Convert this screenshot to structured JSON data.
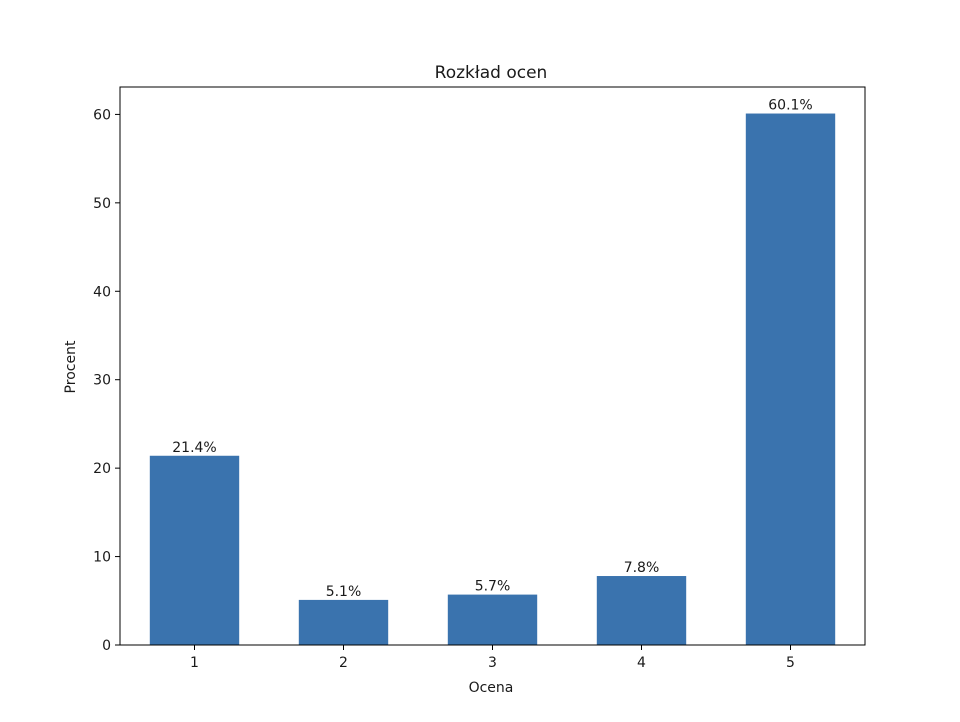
{
  "chart_data": {
    "type": "bar",
    "title": "Rozkład ocen",
    "xlabel": "Ocena",
    "ylabel": "Procent",
    "categories": [
      "1",
      "2",
      "3",
      "4",
      "5"
    ],
    "values": [
      21.4,
      5.1,
      5.7,
      7.8,
      60.1
    ],
    "data_labels": [
      "21.4%",
      "5.1%",
      "5.7%",
      "7.8%",
      "60.1%"
    ],
    "ylim": [
      0,
      63.1
    ],
    "yticks": [
      0,
      10,
      20,
      30,
      40,
      50,
      60
    ],
    "grid": false,
    "bar_color": "#3a73ae"
  }
}
